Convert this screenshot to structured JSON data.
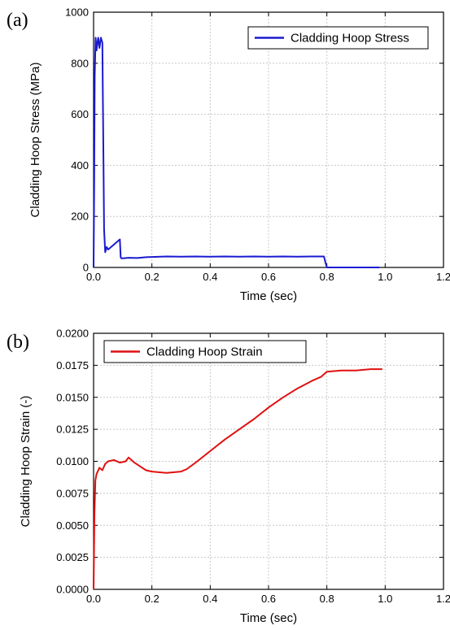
{
  "chart_data": [
    {
      "panel_label": "(a)",
      "type": "line",
      "xlabel": "Time (sec)",
      "ylabel": "Cladding Hoop Stress (MPa)",
      "xlim": [
        0.0,
        1.2
      ],
      "ylim": [
        0,
        1000
      ],
      "x_ticks": [
        "0.0",
        "0.2",
        "0.4",
        "0.6",
        "0.8",
        "1.0",
        "1.2"
      ],
      "y_ticks": [
        "0",
        "200",
        "400",
        "600",
        "800",
        "1000"
      ],
      "grid": true,
      "legend_position": "top-right",
      "series": [
        {
          "name": "Cladding Hoop Stress",
          "color": "#1a1ad0",
          "x": [
            0.0,
            0.002,
            0.004,
            0.007,
            0.01,
            0.013,
            0.016,
            0.02,
            0.025,
            0.03,
            0.034,
            0.036,
            0.04,
            0.045,
            0.05,
            0.06,
            0.07,
            0.08,
            0.09,
            0.093,
            0.095,
            0.1,
            0.12,
            0.15,
            0.18,
            0.2,
            0.25,
            0.3,
            0.35,
            0.4,
            0.45,
            0.5,
            0.55,
            0.6,
            0.65,
            0.7,
            0.75,
            0.79,
            0.795,
            0.8,
            0.85,
            0.9,
            0.95,
            0.98
          ],
          "y": [
            0,
            300,
            750,
            900,
            850,
            880,
            900,
            860,
            900,
            880,
            400,
            150,
            60,
            80,
            70,
            80,
            90,
            100,
            110,
            40,
            36,
            36,
            38,
            37,
            40,
            41,
            43,
            42,
            43,
            42,
            43,
            42,
            43,
            42,
            43,
            42,
            43,
            43,
            20,
            0,
            0,
            0,
            0,
            0
          ]
        }
      ]
    },
    {
      "panel_label": "(b)",
      "type": "line",
      "xlabel": "Time (sec)",
      "ylabel": "Cladding Hoop Strain (-)",
      "xlim": [
        0.0,
        1.2
      ],
      "ylim": [
        0.0,
        0.02
      ],
      "x_ticks": [
        "0.0",
        "0.2",
        "0.4",
        "0.6",
        "0.8",
        "1.0",
        "1.2"
      ],
      "y_ticks": [
        "0.0000",
        "0.0025",
        "0.0050",
        "0.0075",
        "0.0100",
        "0.0125",
        "0.0150",
        "0.0175",
        "0.0200"
      ],
      "grid": true,
      "legend_position": "top-left",
      "series": [
        {
          "name": "Cladding Hoop Strain",
          "color": "#e01010",
          "x": [
            0.0,
            0.003,
            0.006,
            0.01,
            0.02,
            0.03,
            0.04,
            0.05,
            0.07,
            0.09,
            0.11,
            0.12,
            0.14,
            0.16,
            0.18,
            0.2,
            0.25,
            0.3,
            0.32,
            0.35,
            0.4,
            0.45,
            0.5,
            0.55,
            0.6,
            0.65,
            0.7,
            0.75,
            0.78,
            0.8,
            0.85,
            0.9,
            0.95,
            0.99
          ],
          "y": [
            0.0,
            0.006,
            0.0085,
            0.009,
            0.0095,
            0.0093,
            0.0098,
            0.01,
            0.0101,
            0.0099,
            0.01,
            0.0103,
            0.0099,
            0.0096,
            0.0093,
            0.0092,
            0.0091,
            0.0092,
            0.0094,
            0.0099,
            0.0108,
            0.0117,
            0.0125,
            0.0133,
            0.0142,
            0.015,
            0.0157,
            0.0163,
            0.0166,
            0.017,
            0.0171,
            0.0171,
            0.0172,
            0.0172
          ]
        }
      ]
    }
  ]
}
